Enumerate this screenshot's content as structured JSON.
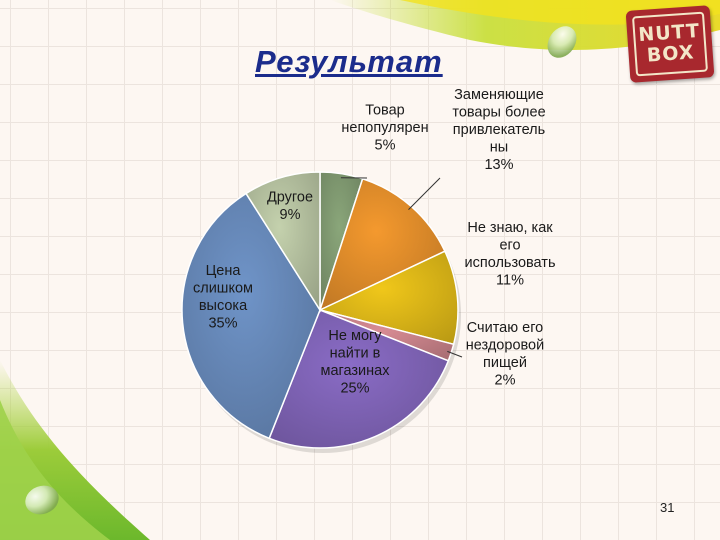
{
  "slide": {
    "title": "Результат",
    "page_number": "31",
    "logo": {
      "line1": "NUTT",
      "line2": "BOX"
    }
  },
  "chart_data": {
    "type": "pie",
    "slices": [
      {
        "label": [
          "Товар",
          "непопулярен"
        ],
        "value": 5,
        "value_label": "5%",
        "color": "#8aa67a"
      },
      {
        "label": [
          "Заменяющие",
          "товары более",
          "привлекатель",
          "ны"
        ],
        "value": 13,
        "value_label": "13%",
        "color": "#f4992e"
      },
      {
        "label": [
          "Не знаю, как",
          "его",
          "использовать"
        ],
        "value": 11,
        "value_label": "11%",
        "color": "#f0c71a"
      },
      {
        "label": [
          "Считаю его",
          "нездоровой",
          "пищей"
        ],
        "value": 2,
        "value_label": "2%",
        "color": "#d88c94"
      },
      {
        "label": [
          "Не могу",
          "найти в",
          "магазинах"
        ],
        "value": 25,
        "value_label": "25%",
        "color": "#8a6cc6"
      },
      {
        "label": [
          "Цена",
          "слишком",
          "высока"
        ],
        "value": 35,
        "value_label": "35%",
        "color": "#6f94c8"
      },
      {
        "label": [
          "Другое"
        ],
        "value": 9,
        "value_label": "9%",
        "color": "#c4d1ad"
      }
    ]
  }
}
